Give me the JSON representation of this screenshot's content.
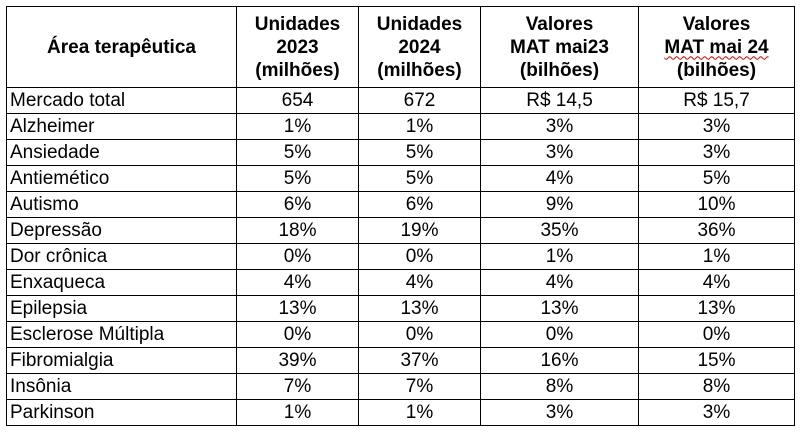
{
  "table": {
    "headers": [
      [
        "Área terapêutica"
      ],
      [
        "Unidades",
        "2023",
        "(milhões)"
      ],
      [
        "Unidades",
        "2024",
        "(milhões)"
      ],
      [
        "Valores",
        "MAT mai23",
        "(bilhões)"
      ],
      [
        "Valores",
        "MAT mai 24",
        "(bilhões)"
      ]
    ],
    "rows": [
      [
        "Mercado total",
        "654",
        "672",
        "R$ 14,5",
        "R$ 15,7"
      ],
      [
        "Alzheimer",
        "1%",
        "1%",
        "3%",
        "3%"
      ],
      [
        "Ansiedade",
        "5%",
        "5%",
        "3%",
        "3%"
      ],
      [
        "Antiemético",
        "5%",
        "5%",
        "4%",
        "5%"
      ],
      [
        "Autismo",
        "6%",
        "6%",
        "9%",
        "10%"
      ],
      [
        "Depressão",
        "18%",
        "19%",
        "35%",
        "36%"
      ],
      [
        "Dor crônica",
        "0%",
        "0%",
        "1%",
        "1%"
      ],
      [
        "Enxaqueca",
        "4%",
        "4%",
        "4%",
        "4%"
      ],
      [
        "Epilepsia",
        "13%",
        "13%",
        "13%",
        "13%"
      ],
      [
        "Esclerose Múltipla",
        "0%",
        "0%",
        "0%",
        "0%"
      ],
      [
        "Fibromialgia",
        "39%",
        "37%",
        "16%",
        "15%"
      ],
      [
        "Insônia",
        "7%",
        "7%",
        "8%",
        "8%"
      ],
      [
        "Parkinson",
        "1%",
        "1%",
        "3%",
        "3%"
      ]
    ]
  }
}
